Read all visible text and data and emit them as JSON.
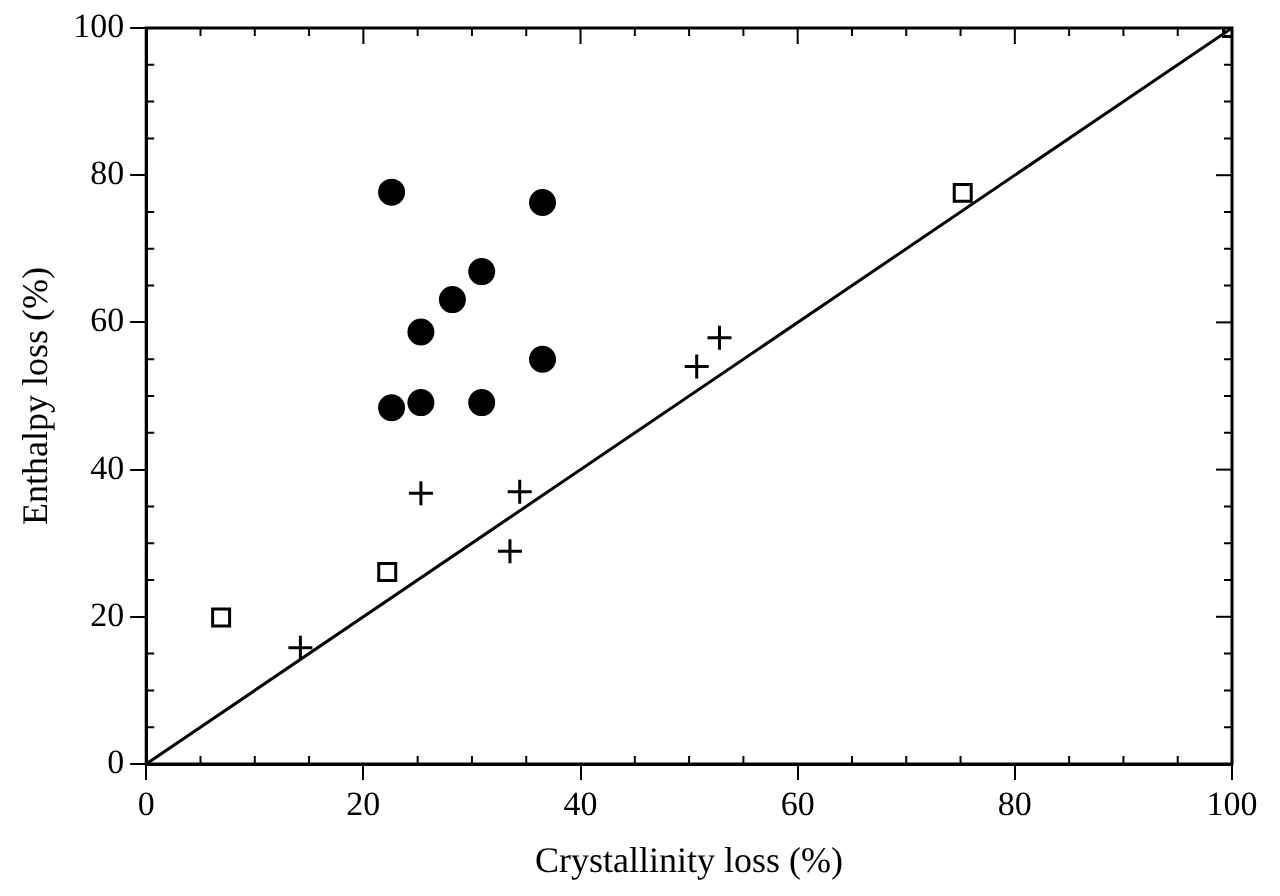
{
  "chart_data": {
    "type": "scatter",
    "xlabel": "Crystallinity loss (%)",
    "ylabel": "Enthalpy loss (%)",
    "xlim": [
      0,
      100
    ],
    "ylim": [
      0,
      100
    ],
    "xticks": [
      0,
      20,
      40,
      60,
      80,
      100
    ],
    "yticks": [
      0,
      20,
      40,
      60,
      80,
      100
    ],
    "grid": false,
    "legend": false,
    "series": [
      {
        "marker": "circle",
        "color": "#000000",
        "x": [
          22.6,
          36.5,
          30.9,
          28.2,
          25.3,
          36.5,
          22.6,
          25.3,
          30.9
        ],
        "values": [
          77.7,
          76.3,
          66.9,
          63.1,
          58.7,
          55.0,
          48.4,
          49.1,
          49.1
        ]
      },
      {
        "marker": "cross",
        "color": "#000000",
        "x": [
          25.3,
          34.4,
          33.5,
          14.2,
          50.7,
          52.8
        ],
        "values": [
          36.8,
          37.0,
          28.9,
          15.8,
          54.0,
          57.9
        ]
      },
      {
        "marker": "square",
        "color": "#000000",
        "x": [
          6.9,
          22.2,
          75.2,
          100
        ],
        "values": [
          19.9,
          26.1,
          77.6,
          100
        ]
      },
      {
        "type": "line",
        "marker": "none",
        "line_style": "solid",
        "color": "#000000",
        "x": [
          0,
          100
        ],
        "values": [
          0,
          100
        ]
      }
    ]
  }
}
